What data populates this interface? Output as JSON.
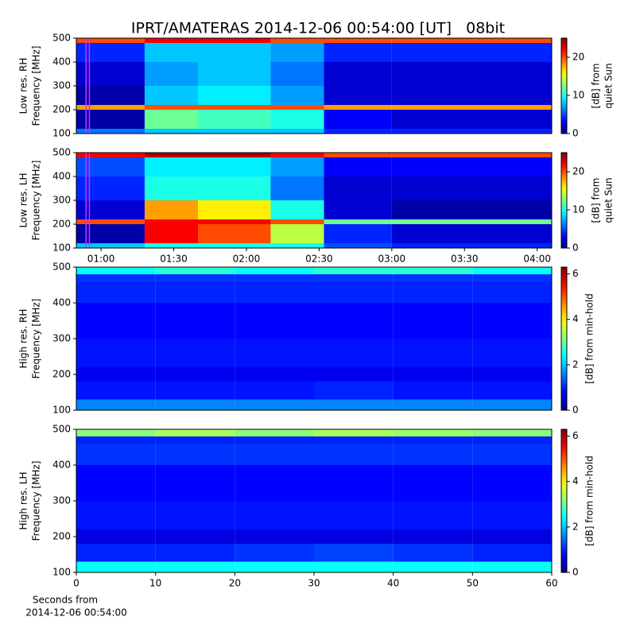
{
  "title": "IPRT/AMATERAS 2014-12-06 00:54:00 [UT]   08bit",
  "chart_data": [
    {
      "type": "heatmap",
      "ylabel": [
        "Low res. RH",
        "Frequency [MHz]"
      ],
      "colormap": "jet",
      "xlim": [
        49.8,
        246
      ],
      "ylim": [
        100,
        500
      ],
      "yticks": [
        100,
        200,
        300,
        400,
        500
      ],
      "x": [
        49.8,
        78,
        100,
        130,
        152,
        180,
        246
      ],
      "y": [
        100,
        120,
        200,
        220,
        300,
        400,
        480,
        500
      ],
      "values": [
        [
          6,
          8,
          8,
          8,
          4,
          4
        ],
        [
          1,
          12,
          11,
          10,
          3,
          2
        ],
        [
          18,
          20,
          20,
          20,
          18,
          18
        ],
        [
          1,
          8,
          9,
          7,
          2,
          2
        ],
        [
          2,
          7,
          8,
          6,
          2,
          2
        ],
        [
          4,
          8,
          8,
          7,
          4,
          4
        ],
        [
          20,
          22,
          22,
          20,
          20,
          20
        ]
      ],
      "vlines": {
        "values": [
          53.8,
          55.2
        ],
        "color": "#cc33ff"
      },
      "clim": [
        0,
        25
      ],
      "cticks": [
        0,
        10,
        20
      ],
      "clabel": [
        "[dB] from",
        "quiet Sun"
      ]
    },
    {
      "type": "heatmap",
      "ylabel": [
        "Low res. LH",
        "Frequency [MHz]"
      ],
      "colormap": "jet",
      "xlim": [
        49.8,
        246
      ],
      "ylim": [
        100,
        500
      ],
      "yticks": [
        100,
        200,
        300,
        400,
        500
      ],
      "xticks": [
        {
          "value": 60,
          "label": "01:00"
        },
        {
          "value": 90,
          "label": "01:30"
        },
        {
          "value": 120,
          "label": "02:00"
        },
        {
          "value": 150,
          "label": "02:30"
        },
        {
          "value": 180,
          "label": "03:00"
        },
        {
          "value": 210,
          "label": "03:30"
        },
        {
          "value": 240,
          "label": "04:00"
        }
      ],
      "x": [
        49.8,
        78,
        100,
        130,
        152,
        180,
        246
      ],
      "y": [
        100,
        120,
        200,
        220,
        300,
        400,
        480,
        500
      ],
      "values": [
        [
          8,
          10,
          10,
          10,
          5,
          4
        ],
        [
          1,
          22,
          20,
          14,
          4,
          2
        ],
        [
          20,
          22,
          22,
          20,
          12,
          12
        ],
        [
          2,
          18,
          16,
          10,
          2,
          1
        ],
        [
          4,
          10,
          10,
          6,
          2,
          2
        ],
        [
          5,
          9,
          9,
          7,
          3,
          3
        ],
        [
          22,
          24,
          24,
          22,
          20,
          20
        ]
      ],
      "vlines": {
        "values": [
          53.8,
          55.2
        ],
        "color": "#cc33ff"
      },
      "clim": [
        0,
        25
      ],
      "cticks": [
        0,
        10,
        20
      ],
      "clabel": [
        "[dB] from",
        "quiet Sun"
      ]
    },
    {
      "type": "heatmap",
      "ylabel": [
        "High res. RH",
        "Frequency [MHz]"
      ],
      "colormap": "jet",
      "xlim": [
        0,
        60
      ],
      "ylim": [
        100,
        500
      ],
      "yticks": [
        100,
        200,
        300,
        400,
        500
      ],
      "x": [
        0,
        10,
        20,
        30,
        40,
        50,
        60
      ],
      "y": [
        100,
        130,
        180,
        220,
        300,
        400,
        460,
        480,
        500
      ],
      "values": [
        [
          1.6,
          1.6,
          1.6,
          1.6,
          1.6,
          1.6
        ],
        [
          0.9,
          0.9,
          0.9,
          1,
          0.9,
          0.9
        ],
        [
          0.7,
          0.7,
          0.7,
          0.7,
          0.7,
          0.7
        ],
        [
          0.9,
          0.9,
          0.9,
          0.9,
          0.9,
          0.9
        ],
        [
          0.8,
          0.8,
          0.8,
          0.8,
          0.8,
          0.8
        ],
        [
          1,
          1,
          1,
          1,
          1,
          1
        ],
        [
          1.1,
          1.1,
          1.1,
          1.1,
          1.1,
          1.1
        ],
        [
          2.4,
          2.6,
          2.4,
          2.6,
          2.6,
          2.4
        ]
      ],
      "clim": [
        0,
        6.3
      ],
      "cticks": [
        0,
        2,
        4,
        6
      ],
      "clabel": [
        "[dB] from min-hold"
      ]
    },
    {
      "type": "heatmap",
      "ylabel": [
        "High res. LH",
        "Frequency [MHz]"
      ],
      "colormap": "jet",
      "xlim": [
        0,
        60
      ],
      "ylim": [
        100,
        500
      ],
      "yticks": [
        100,
        200,
        300,
        400,
        500
      ],
      "xticks": [
        0,
        10,
        20,
        30,
        40,
        50,
        60
      ],
      "xlabel": [
        "Seconds from",
        "2014-12-06 00:54:00"
      ],
      "x": [
        0,
        10,
        20,
        30,
        40,
        50,
        60
      ],
      "y": [
        100,
        130,
        180,
        220,
        300,
        400,
        460,
        480,
        500
      ],
      "values": [
        [
          2.4,
          2.4,
          2.4,
          2.4,
          2.4,
          2.4
        ],
        [
          1,
          1,
          1.1,
          1.2,
          1.1,
          1
        ],
        [
          0.6,
          0.6,
          0.6,
          0.6,
          0.6,
          0.6
        ],
        [
          0.9,
          0.9,
          0.9,
          0.9,
          0.9,
          0.9
        ],
        [
          0.8,
          0.8,
          0.8,
          0.8,
          0.8,
          0.8
        ],
        [
          1.1,
          1.1,
          1.1,
          1.1,
          1.1,
          1.1
        ],
        [
          1,
          1,
          1,
          1,
          1,
          1
        ],
        [
          3.2,
          3.4,
          3.2,
          3.4,
          3.3,
          3.2
        ]
      ],
      "clim": [
        0,
        6.3
      ],
      "cticks": [
        0,
        2,
        4,
        6
      ],
      "clabel": [
        "[dB] from min-hold"
      ]
    }
  ]
}
